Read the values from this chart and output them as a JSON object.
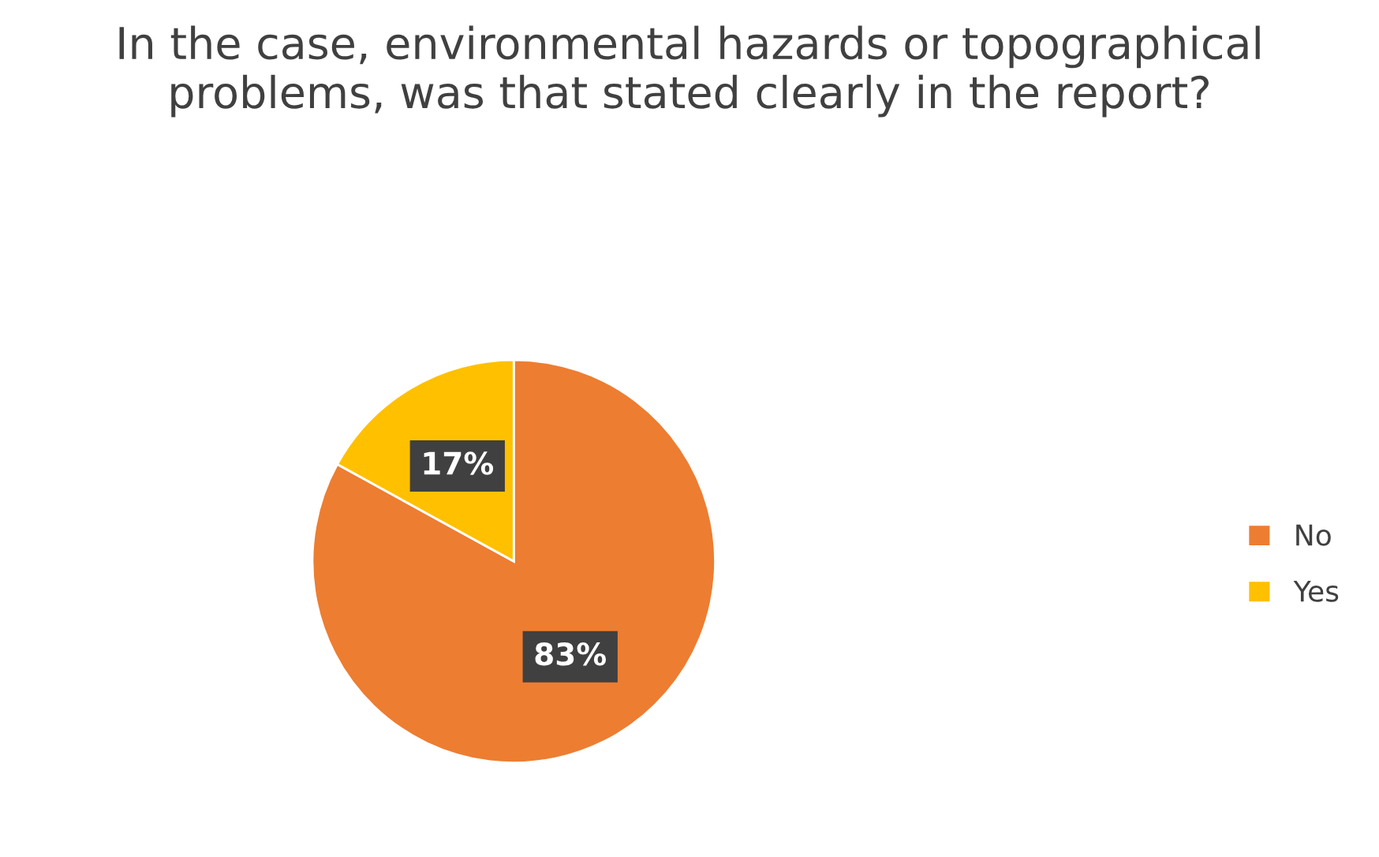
{
  "chart_data": {
    "type": "pie",
    "title": "In the case, environmental hazards or topographical problems, was that stated clearly in the report?",
    "categories": [
      "No",
      "Yes"
    ],
    "values": [
      83,
      17
    ],
    "colors": [
      "#ed7d31",
      "#ffc000"
    ],
    "value_labels": [
      "83%",
      "17%"
    ],
    "legend": "right"
  }
}
